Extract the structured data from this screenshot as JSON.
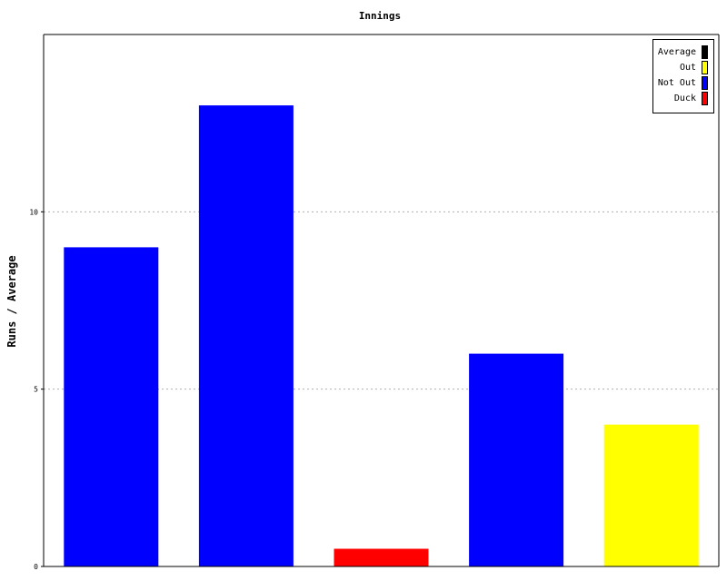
{
  "chart_data": {
    "type": "bar",
    "title": "Innings",
    "xlabel": "",
    "ylabel": "Runs / Average",
    "ylim": [
      0,
      15
    ],
    "yticks": [
      0,
      5,
      10
    ],
    "grid": "horizontal-dotted",
    "legend_position": "top-right",
    "legend": [
      {
        "name": "Average",
        "color": "#000000"
      },
      {
        "name": "Out",
        "color": "#ffff00"
      },
      {
        "name": "Not Out",
        "color": "#0000ff"
      },
      {
        "name": "Duck",
        "color": "#ff0000"
      }
    ],
    "bars": [
      {
        "value": 9,
        "status": "Not Out",
        "color": "#0000ff"
      },
      {
        "value": 13,
        "status": "Not Out",
        "color": "#0000ff"
      },
      {
        "value": 0.5,
        "status": "Duck",
        "color": "#ff0000"
      },
      {
        "value": 6,
        "status": "Not Out",
        "color": "#0000ff"
      },
      {
        "value": 4,
        "status": "Out",
        "color": "#ffff00"
      }
    ]
  }
}
